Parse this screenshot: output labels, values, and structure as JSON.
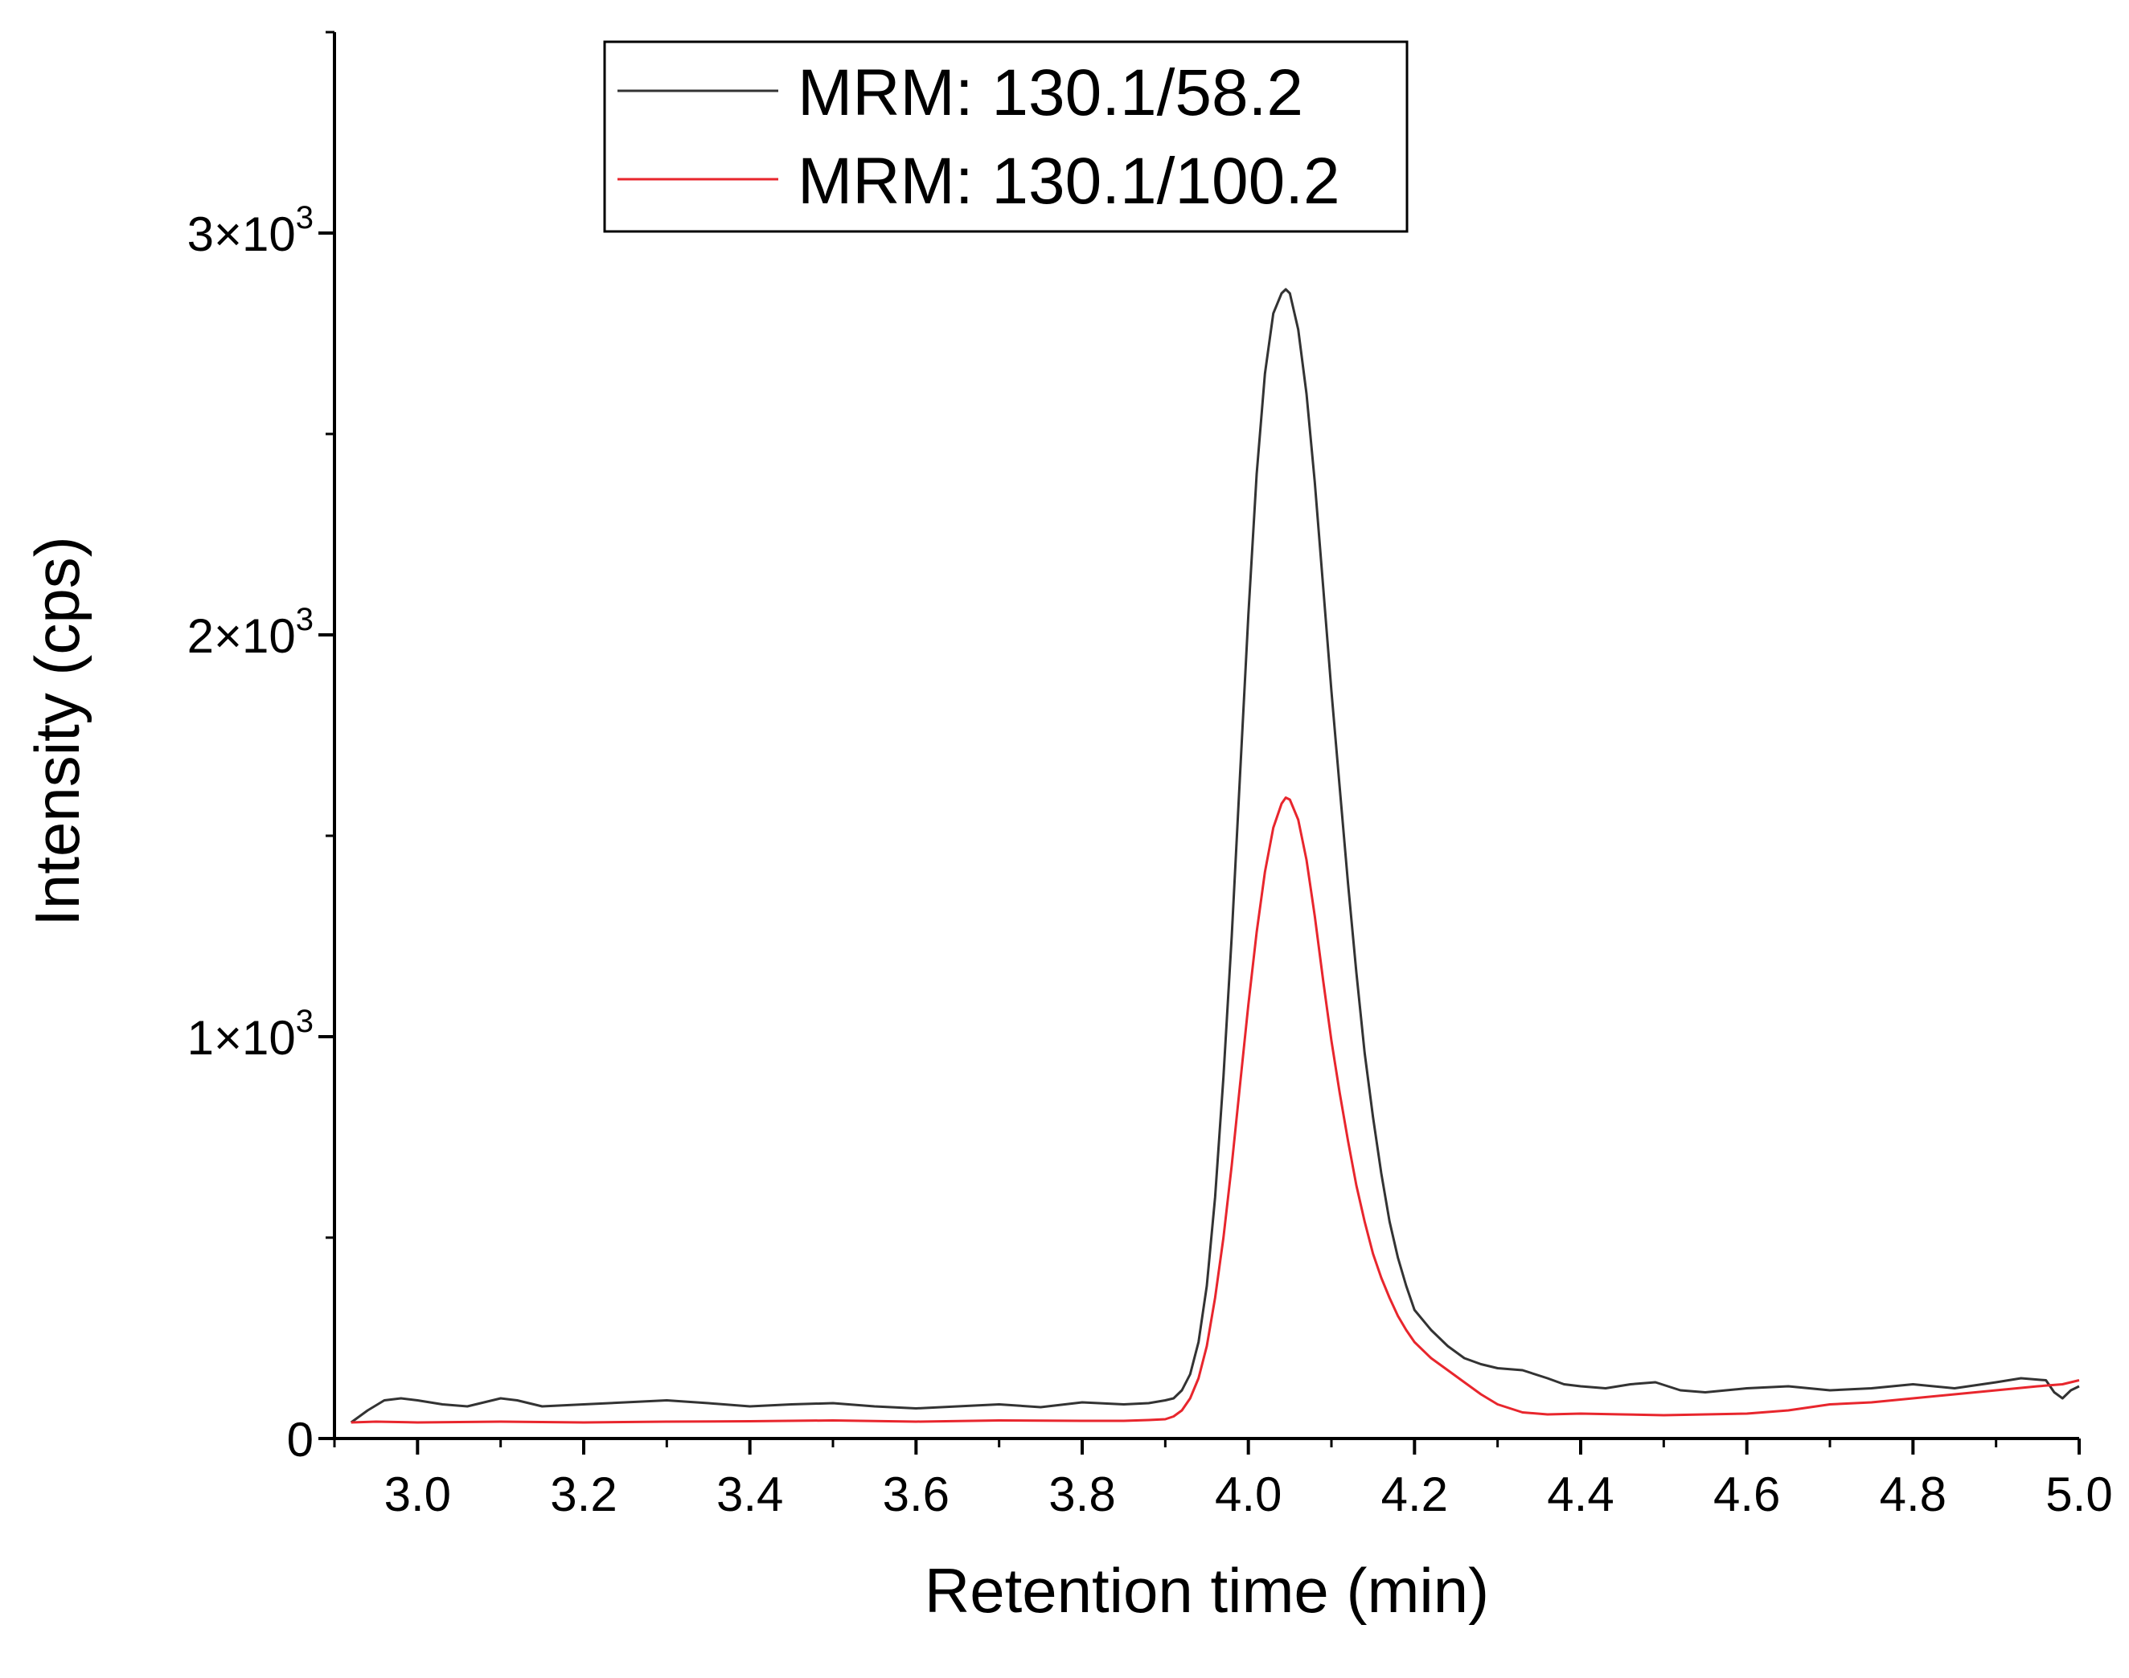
{
  "chart_data": {
    "type": "line",
    "title": "",
    "xlabel": "Retention time (min)",
    "ylabel": "Intensity (cps)",
    "xlim": [
      2.9,
      5.0
    ],
    "ylim": [
      0,
      3500
    ],
    "x_ticks": [
      3.0,
      3.2,
      3.4,
      3.6,
      3.8,
      4.0,
      4.2,
      4.4,
      4.6,
      4.8,
      5.0
    ],
    "x_tick_labels": [
      "3.0",
      "3.2",
      "3.4",
      "3.6",
      "3.8",
      "4.0",
      "4.2",
      "4.4",
      "4.6",
      "4.8",
      "5.0"
    ],
    "y_ticks": [
      0,
      1000,
      2000,
      3000
    ],
    "y_tick_labels": [
      {
        "base": "0",
        "exp": ""
      },
      {
        "base": "1×10",
        "exp": "3"
      },
      {
        "base": "2×10",
        "exp": "3"
      },
      {
        "base": "3×10",
        "exp": "3"
      }
    ],
    "grid": false,
    "legend_position": "top-center",
    "series": [
      {
        "name": "MRM: 130.1/58.2",
        "color": "#333333",
        "x": [
          2.92,
          2.93,
          2.94,
          2.96,
          2.98,
          3.0,
          3.03,
          3.06,
          3.08,
          3.1,
          3.12,
          3.15,
          3.2,
          3.25,
          3.3,
          3.35,
          3.4,
          3.45,
          3.5,
          3.55,
          3.6,
          3.65,
          3.7,
          3.75,
          3.8,
          3.85,
          3.88,
          3.9,
          3.91,
          3.92,
          3.93,
          3.94,
          3.95,
          3.96,
          3.97,
          3.98,
          3.99,
          4.0,
          4.01,
          4.02,
          4.03,
          4.04,
          4.045,
          4.05,
          4.06,
          4.07,
          4.08,
          4.09,
          4.1,
          4.11,
          4.12,
          4.13,
          4.14,
          4.15,
          4.16,
          4.17,
          4.18,
          4.19,
          4.2,
          4.22,
          4.24,
          4.26,
          4.28,
          4.3,
          4.33,
          4.36,
          4.38,
          4.4,
          4.43,
          4.46,
          4.49,
          4.52,
          4.55,
          4.6,
          4.65,
          4.7,
          4.75,
          4.8,
          4.85,
          4.9,
          4.93,
          4.96,
          4.97,
          4.98,
          4.99,
          5.0
        ],
        "values": [
          40,
          55,
          70,
          95,
          100,
          95,
          85,
          80,
          90,
          100,
          95,
          80,
          85,
          90,
          95,
          88,
          80,
          85,
          88,
          80,
          75,
          80,
          85,
          78,
          90,
          85,
          88,
          95,
          100,
          120,
          160,
          240,
          380,
          600,
          900,
          1250,
          1650,
          2050,
          2400,
          2650,
          2800,
          2850,
          2860,
          2850,
          2760,
          2600,
          2380,
          2120,
          1860,
          1620,
          1380,
          1160,
          960,
          800,
          660,
          540,
          450,
          380,
          320,
          270,
          230,
          200,
          185,
          175,
          170,
          150,
          135,
          130,
          125,
          135,
          140,
          120,
          115,
          125,
          130,
          120,
          125,
          135,
          125,
          140,
          150,
          145,
          115,
          100,
          120,
          130
        ]
      },
      {
        "name": "MRM: 130.1/100.2",
        "color": "#e8262d",
        "x": [
          2.92,
          2.95,
          3.0,
          3.1,
          3.2,
          3.3,
          3.4,
          3.5,
          3.6,
          3.7,
          3.8,
          3.85,
          3.88,
          3.9,
          3.91,
          3.92,
          3.93,
          3.94,
          3.95,
          3.96,
          3.97,
          3.98,
          3.99,
          4.0,
          4.01,
          4.02,
          4.03,
          4.04,
          4.045,
          4.05,
          4.06,
          4.07,
          4.08,
          4.09,
          4.1,
          4.11,
          4.12,
          4.13,
          4.14,
          4.15,
          4.16,
          4.17,
          4.18,
          4.19,
          4.2,
          4.22,
          4.24,
          4.26,
          4.28,
          4.3,
          4.33,
          4.36,
          4.4,
          4.45,
          4.5,
          4.55,
          4.6,
          4.65,
          4.7,
          4.75,
          4.8,
          4.85,
          4.9,
          4.95,
          4.98,
          5.0
        ],
        "values": [
          40,
          42,
          40,
          42,
          40,
          42,
          43,
          45,
          42,
          45,
          44,
          44,
          46,
          48,
          55,
          70,
          100,
          150,
          230,
          350,
          500,
          680,
          880,
          1080,
          1260,
          1410,
          1520,
          1580,
          1595,
          1590,
          1540,
          1440,
          1300,
          1140,
          990,
          860,
          740,
          630,
          540,
          460,
          400,
          350,
          305,
          270,
          240,
          200,
          170,
          140,
          110,
          85,
          65,
          60,
          62,
          60,
          58,
          60,
          62,
          70,
          85,
          90,
          100,
          110,
          120,
          130,
          135,
          145
        ]
      }
    ]
  }
}
